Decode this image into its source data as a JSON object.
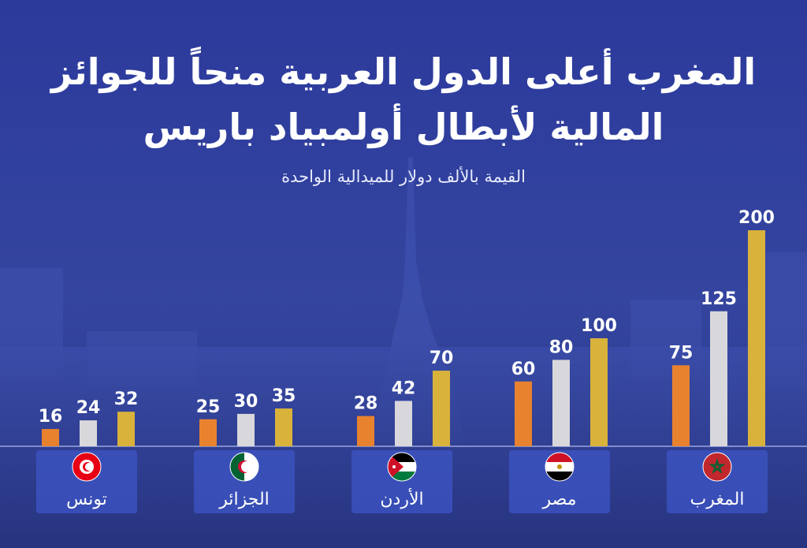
{
  "chart_data": {
    "type": "bar",
    "title_line1": "المغرب أعلى الدول العربية منحاً للجوائز",
    "title_line2": "المالية لأبطال أولمبياد باريس",
    "subtitle": "القيمة بالألف دولار للميدالية الواحدة",
    "categories": [
      "تونس",
      "الجزائر",
      "الأردن",
      "مصر",
      "المغرب"
    ],
    "series": [
      {
        "color": "#e8822f",
        "values": [
          16,
          25,
          28,
          60,
          75
        ]
      },
      {
        "color": "#d8d8dc",
        "values": [
          24,
          30,
          42,
          80,
          125
        ]
      },
      {
        "color": "#d9b23c",
        "values": [
          32,
          35,
          70,
          100,
          200
        ]
      }
    ],
    "ylim": [
      0,
      200
    ],
    "grid": false,
    "data_labels": true,
    "flags": [
      "tunisia-flag",
      "algeria-flag",
      "jordan-flag",
      "egypt-flag",
      "morocco-flag"
    ]
  }
}
